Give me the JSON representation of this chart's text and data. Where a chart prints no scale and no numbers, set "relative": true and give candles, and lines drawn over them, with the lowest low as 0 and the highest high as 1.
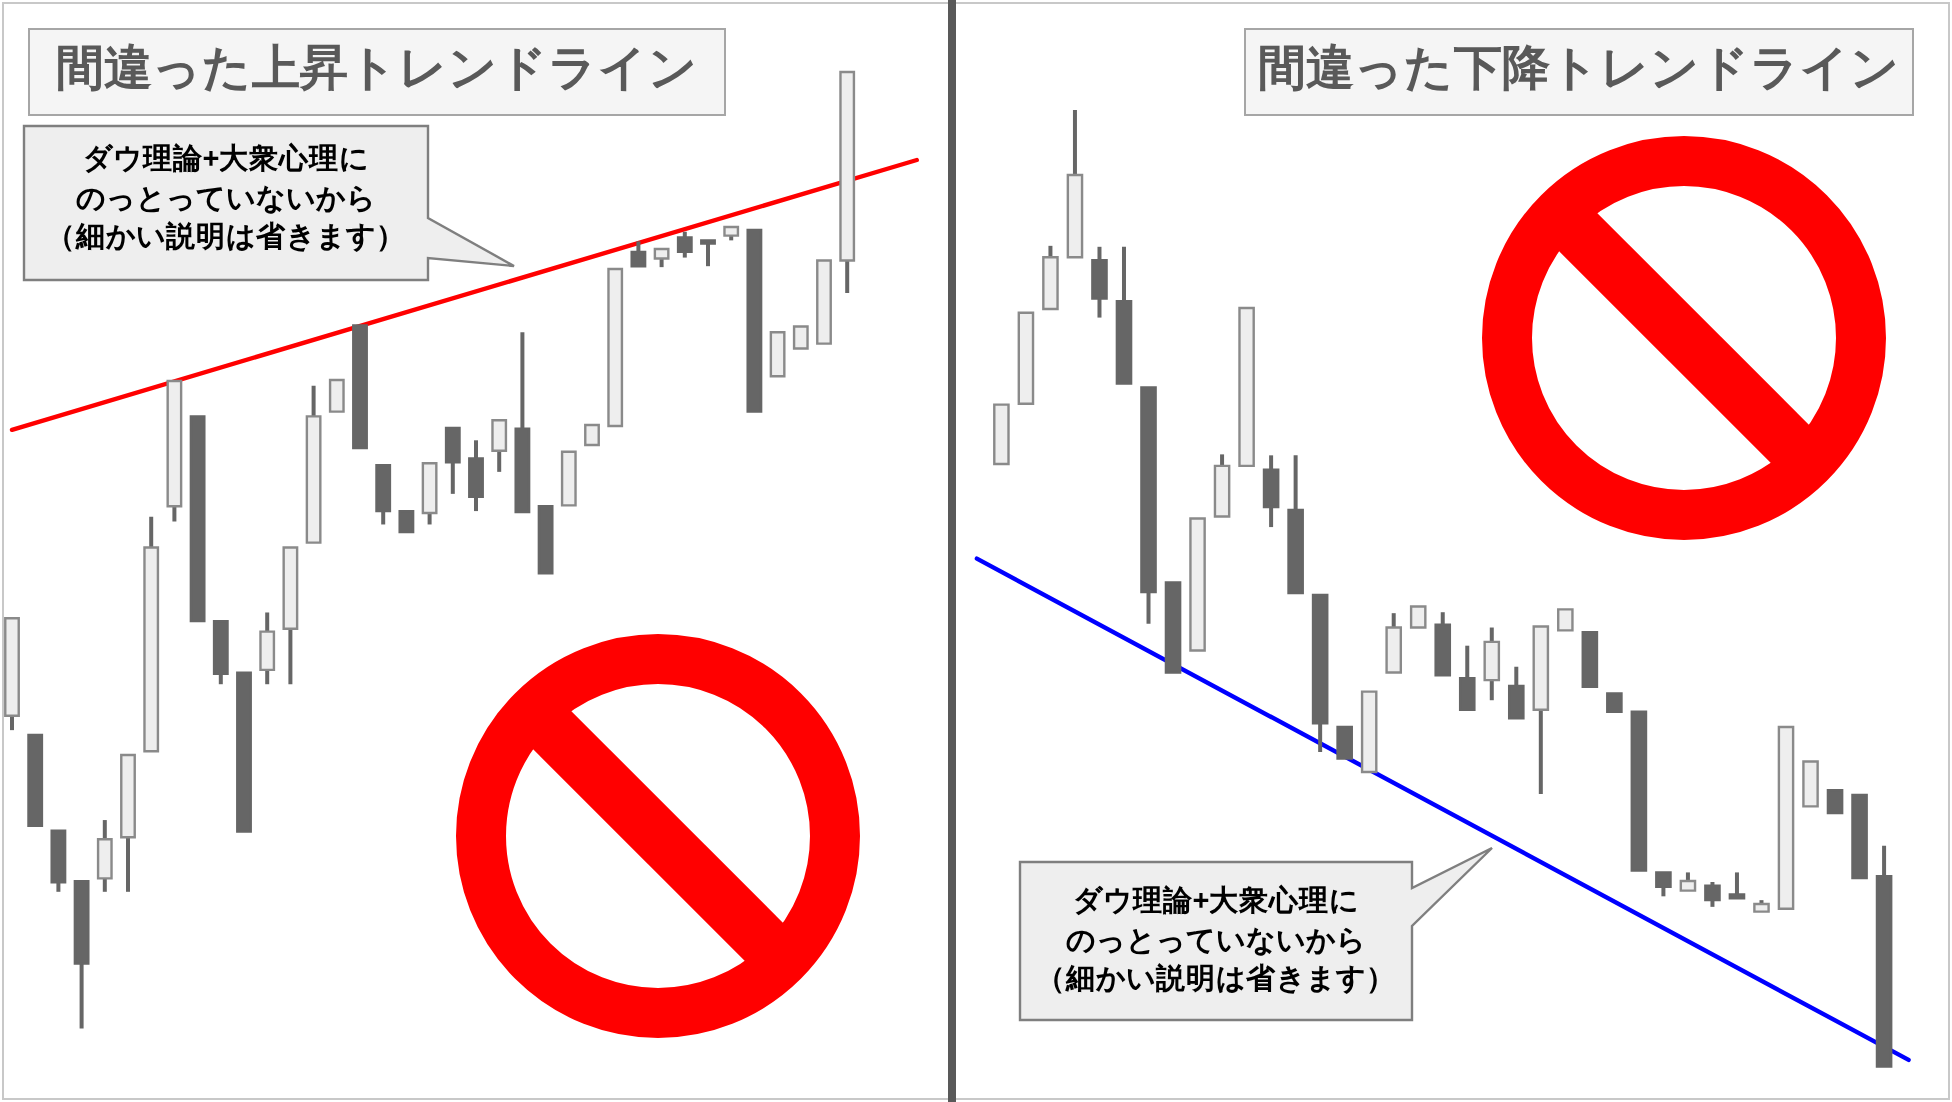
{
  "chart_data": [
    {
      "type": "candlestick",
      "title": "間違った上昇トレンドライン",
      "annotations": [
        "ダウ理論+大衆心理にのっとっていないから（細かい説明は省きます）"
      ],
      "relative": true,
      "categories": [
        null,
        null,
        null,
        null,
        null,
        null,
        null,
        null,
        null,
        null,
        null,
        null,
        null,
        null,
        null,
        null,
        null,
        null,
        null,
        null,
        null,
        null,
        null,
        null,
        null,
        null,
        null,
        null,
        null,
        null,
        null,
        null,
        null,
        null,
        null,
        null,
        null,
        null,
        null,
        null
      ],
      "ohlc": [
        [
          0.327,
          0.429,
          0.312,
          0.429
        ],
        [
          0.307,
          0.307,
          0.212,
          0.212
        ],
        [
          0.207,
          0.207,
          0.143,
          0.153
        ],
        [
          0.154,
          0.154,
          0,
          0.068
        ],
        [
          0.157,
          0.218,
          0.143,
          0.198
        ],
        [
          0.2,
          0.286,
          0.143,
          0.286
        ],
        [
          0.29,
          0.535,
          0.29,
          0.503
        ],
        [
          0.546,
          0.677,
          0.53,
          0.677
        ],
        [
          0.64,
          0.64,
          0.426,
          0.426
        ],
        [
          0.426,
          0.426,
          0.36,
          0.371
        ],
        [
          0.372,
          0.372,
          0.206,
          0.206
        ],
        [
          0.375,
          0.435,
          0.36,
          0.415
        ],
        [
          0.418,
          0.503,
          0.36,
          0.503
        ],
        [
          0.508,
          0.672,
          0.508,
          0.64
        ],
        [
          0.645,
          0.678,
          0.645,
          0.678
        ],
        [
          0.735,
          0.735,
          0.607,
          0.607
        ],
        [
          0.589,
          0.589,
          0.527,
          0.541
        ],
        [
          0.541,
          0.541,
          0.519,
          0.519
        ],
        [
          0.539,
          0.591,
          0.527,
          0.591
        ],
        [
          0.628,
          0.628,
          0.559,
          0.592
        ],
        [
          0.596,
          0.615,
          0.541,
          0.556
        ],
        [
          0.604,
          0.636,
          0.582,
          0.636
        ],
        [
          0.627,
          0.728,
          0.54,
          0.54
        ],
        [
          0.546,
          0.546,
          0.476,
          0.476
        ],
        [
          0.547,
          0.603,
          0.547,
          0.603
        ],
        [
          0.61,
          0.631,
          0.61,
          0.631
        ],
        [
          0.63,
          0.794,
          0.63,
          0.794
        ],
        [
          0.812,
          0.823,
          0.797,
          0.797
        ],
        [
          0.805,
          0.815,
          0.796,
          0.815
        ],
        [
          0.827,
          0.833,
          0.806,
          0.812
        ],
        [
          0.824,
          0.824,
          0.797,
          0.822
        ],
        [
          0.829,
          0.838,
          0.824,
          0.838
        ],
        [
          0.835,
          0.835,
          0.645,
          0.645
        ],
        [
          0.682,
          0.728,
          0.682,
          0.728
        ],
        [
          0.711,
          0.734,
          0.711,
          0.734
        ],
        [
          0.716,
          0.803,
          0.716,
          0.803
        ],
        [
          0.803,
          1,
          0.769,
          1
        ],
        null,
        null,
        null
      ],
      "series": [
        {
          "type": "line",
          "color": "#ff0000",
          "values": [
            0.626,
            null,
            null,
            null,
            null,
            null,
            null,
            null,
            null,
            null,
            null,
            null,
            null,
            null,
            null,
            null,
            null,
            null,
            null,
            null,
            null,
            null,
            null,
            null,
            null,
            null,
            null,
            null,
            null,
            null,
            null,
            null,
            null,
            null,
            null,
            null,
            null,
            null,
            null,
            0.908
          ]
        }
      ]
    },
    {
      "type": "candlestick",
      "title": "間違った下降トレンドライン",
      "annotations": [
        "ダウ理論+大衆心理にのっとっていないから（細かい説明は省きます）"
      ],
      "relative": true,
      "categories": [
        null,
        null,
        null,
        null,
        null,
        null,
        null,
        null,
        null,
        null,
        null,
        null,
        null,
        null,
        null,
        null,
        null,
        null,
        null,
        null,
        null,
        null,
        null,
        null,
        null,
        null,
        null,
        null,
        null,
        null,
        null,
        null,
        null,
        null,
        null,
        null,
        null,
        null,
        null
      ],
      "ohlc": [
        null,
        [
          0.63,
          0.692,
          0.63,
          0.692
        ],
        [
          0.693,
          0.788,
          0.693,
          0.788
        ],
        [
          0.792,
          0.858,
          0.792,
          0.846
        ],
        [
          0.846,
          1,
          0.846,
          0.932
        ],
        [
          0.843,
          0.857,
          0.783,
          0.803
        ],
        [
          0.8,
          0.857,
          0.714,
          0.714
        ],
        [
          0.71,
          0.71,
          0.463,
          0.496
        ],
        [
          0.506,
          0.506,
          0.412,
          0.412
        ],
        [
          0.435,
          0.573,
          0.435,
          0.573
        ],
        [
          0.575,
          0.64,
          0.575,
          0.628
        ],
        [
          0.628,
          0.793,
          0.628,
          0.793
        ],
        [
          0.624,
          0.639,
          0.564,
          0.585
        ],
        [
          0.582,
          0.639,
          0.495,
          0.495
        ],
        [
          0.493,
          0.493,
          0.329,
          0.359
        ],
        [
          0.355,
          0.355,
          0.322,
          0.322
        ],
        [
          0.308,
          0.392,
          0.308,
          0.392
        ],
        [
          0.412,
          0.474,
          0.412,
          0.459
        ],
        [
          0.459,
          0.481,
          0.459,
          0.481
        ],
        [
          0.462,
          0.475,
          0.409,
          0.409
        ],
        [
          0.406,
          0.44,
          0.373,
          0.373
        ],
        [
          0.404,
          0.459,
          0.383,
          0.444
        ],
        [
          0.398,
          0.418,
          0.364,
          0.364
        ],
        [
          0.373,
          0.46,
          0.285,
          0.46
        ],
        [
          0.456,
          0.478,
          0.456,
          0.478
        ],
        [
          0.454,
          0.454,
          0.397,
          0.397
        ],
        [
          0.39,
          0.39,
          0.371,
          0.371
        ],
        [
          0.371,
          0.371,
          0.205,
          0.205
        ],
        [
          0.203,
          0.203,
          0.178,
          0.188
        ],
        [
          0.184,
          0.203,
          0.184,
          0.194
        ],
        [
          0.189,
          0.193,
          0.167,
          0.174
        ],
        [
          0.18,
          0.203,
          0.176,
          0.176
        ],
        [
          0.162,
          0.174,
          0.162,
          0.17
        ],
        [
          0.165,
          0.355,
          0.165,
          0.355
        ],
        [
          0.272,
          0.319,
          0.272,
          0.319
        ],
        [
          0.289,
          0.289,
          0.265,
          0.265
        ],
        [
          0.284,
          0.284,
          0.197,
          0.197
        ],
        [
          0.199,
          0.231,
          0,
          0
        ],
        null
      ],
      "series": [
        {
          "type": "line",
          "color": "#0000ff",
          "values": [
            0.531,
            null,
            null,
            null,
            null,
            null,
            null,
            null,
            null,
            null,
            null,
            null,
            null,
            null,
            null,
            null,
            null,
            null,
            null,
            null,
            null,
            null,
            null,
            null,
            null,
            null,
            null,
            null,
            null,
            null,
            null,
            null,
            null,
            null,
            null,
            null,
            null,
            null,
            0.007
          ]
        }
      ]
    }
  ]
}
